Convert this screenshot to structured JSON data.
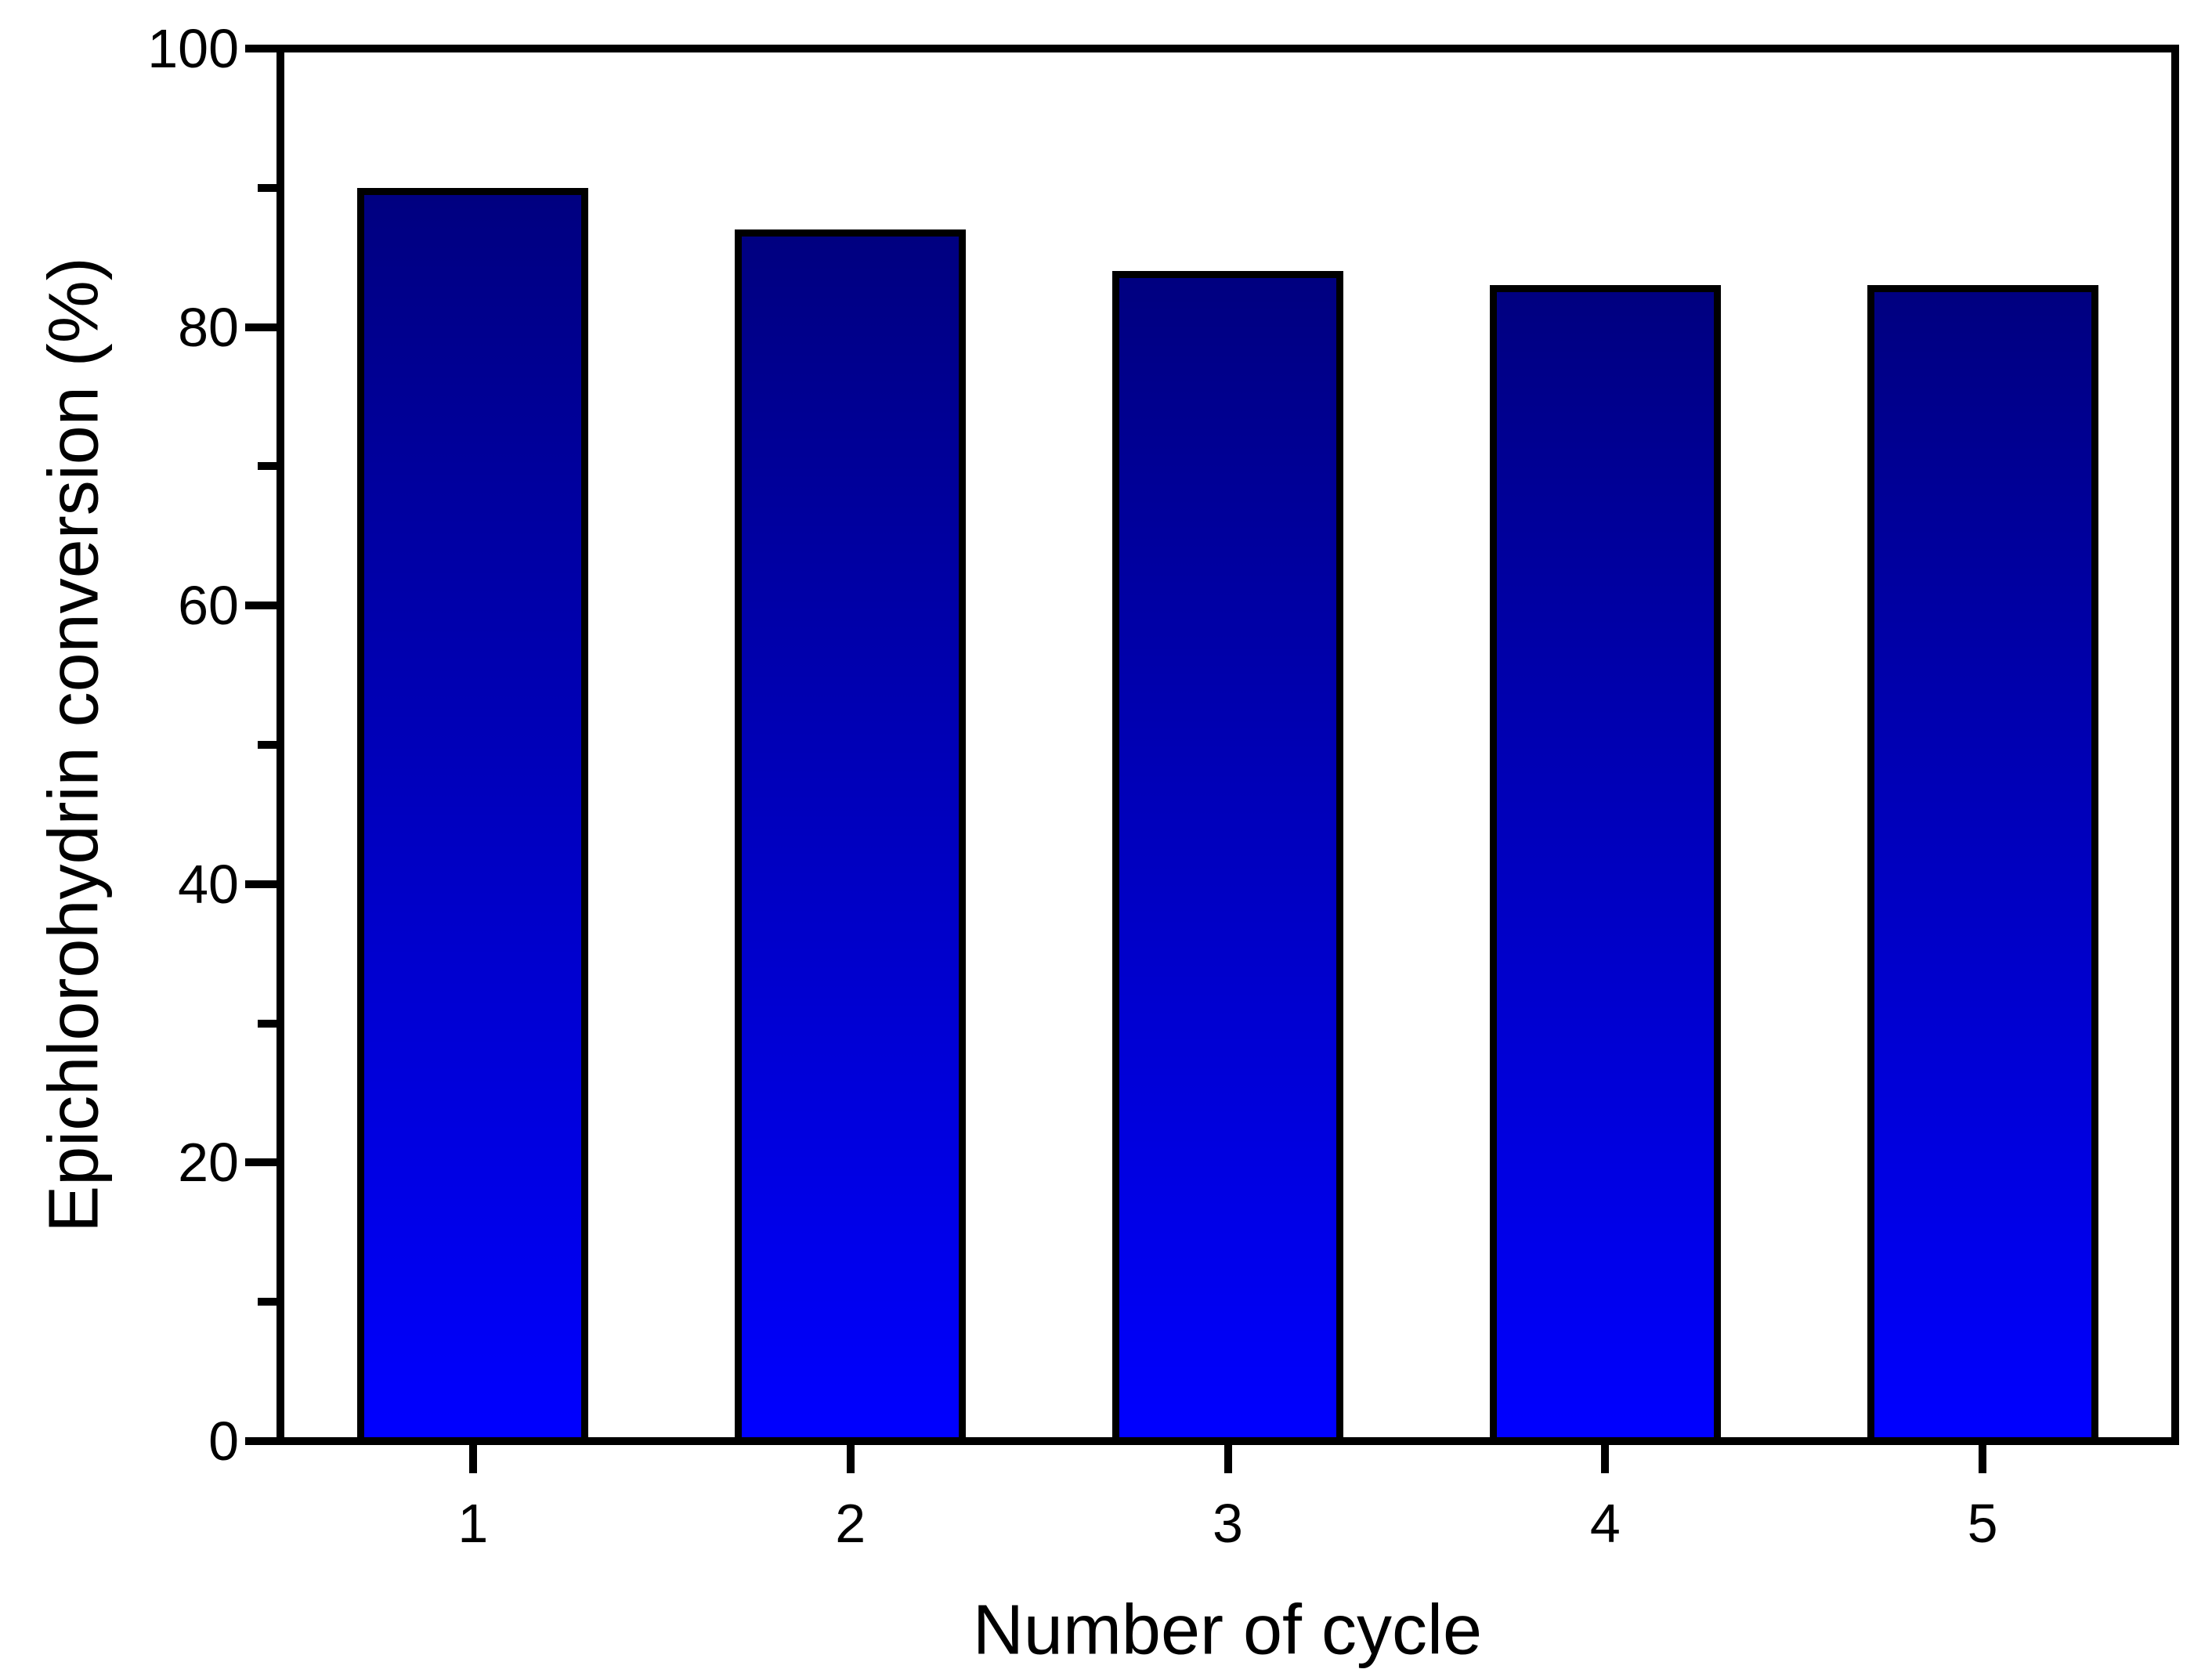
{
  "chart_data": {
    "type": "bar",
    "categories": [
      "1",
      "2",
      "3",
      "4",
      "5"
    ],
    "values": [
      90,
      87,
      84,
      83,
      83
    ],
    "title": "",
    "xlabel": "Number of cycle",
    "ylabel": "Epichlorohydrin conversion (%)",
    "ylim": [
      0,
      100
    ],
    "y_major_ticks": [
      0,
      20,
      40,
      60,
      80,
      100
    ],
    "y_minor_ticks": [
      10,
      30,
      50,
      70,
      90
    ],
    "x_minor_ticks": [],
    "grid": "off",
    "legend": "none",
    "bar_gradient_top": "#000080",
    "bar_gradient_bottom": "#0000FF",
    "bar_border_color": "#000000",
    "axis_color": "#000000",
    "text_color": "#000000",
    "background_color": "#FFFFFF"
  }
}
